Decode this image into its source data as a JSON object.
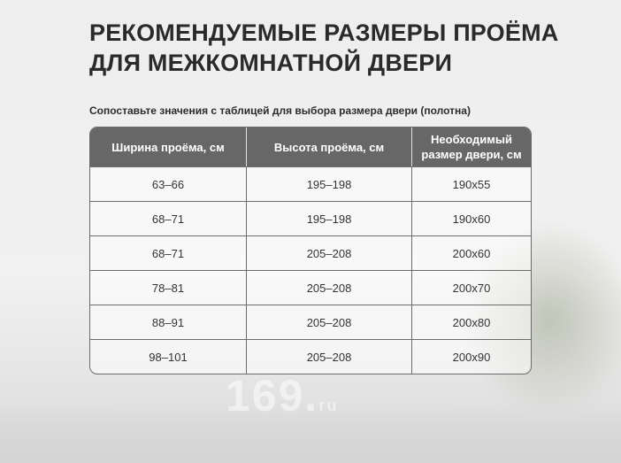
{
  "title_line1": "РЕКОМЕНДУЕМЫЕ РАЗМЕРЫ ПРОЁМА",
  "title_line2": "ДЛЯ МЕЖКОМНАТНОЙ ДВЕРИ",
  "subtitle": "Сопоставьте значения с таблицей для выбора размера двери (полотна)",
  "table": {
    "headers": [
      "Ширина проёма, см",
      "Высота проёма, см",
      "Необходимый размер двери, см"
    ],
    "rows": [
      [
        "63–66",
        "195–198",
        "190x55"
      ],
      [
        "68–71",
        "195–198",
        "190x60"
      ],
      [
        "68–71",
        "205–208",
        "200x60"
      ],
      [
        "78–81",
        "205–208",
        "200x70"
      ],
      [
        "88–91",
        "205–208",
        "200x80"
      ],
      [
        "98–101",
        "205–208",
        "200x90"
      ]
    ]
  },
  "watermark": "169.ru"
}
